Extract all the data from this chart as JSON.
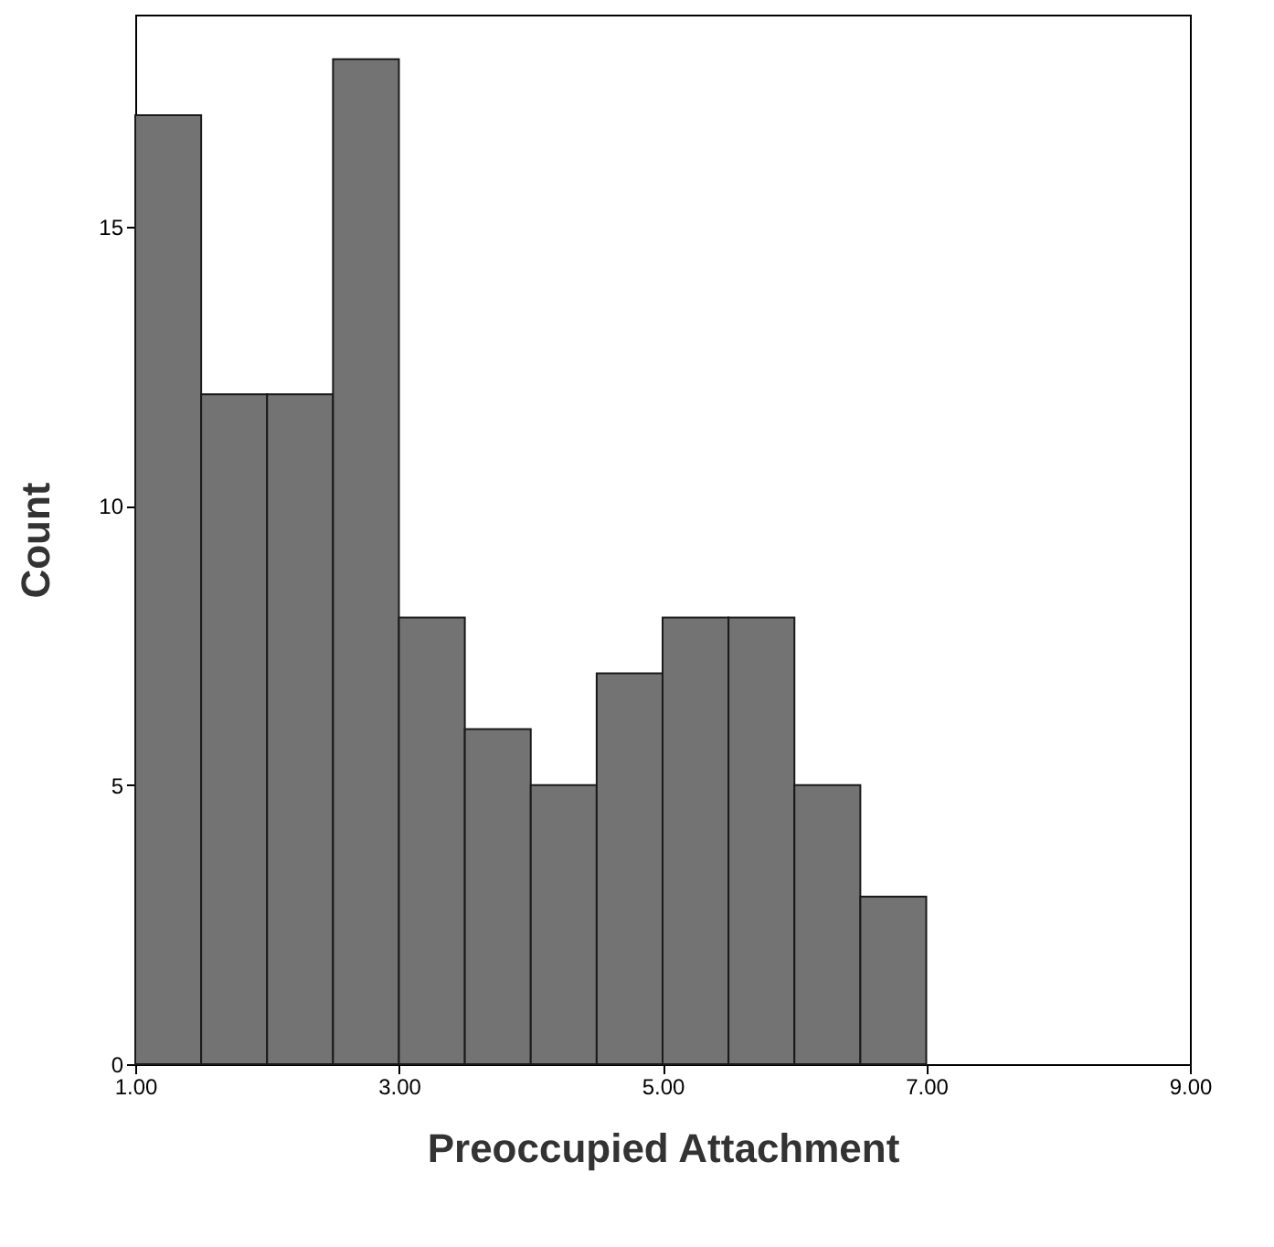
{
  "chart_data": {
    "type": "histogram",
    "xlabel": "Preoccupied Attachment",
    "ylabel": "Count",
    "bins": [
      1.0,
      1.5,
      2.0,
      2.5,
      3.0,
      3.5,
      4.0,
      4.5,
      5.0,
      5.5,
      6.0,
      6.5,
      7.0
    ],
    "values": [
      17,
      12,
      12,
      18,
      8,
      6,
      5,
      7,
      8,
      8,
      5,
      3
    ],
    "color": "#737373",
    "xlim": [
      1.0,
      9.0
    ],
    "xticks": [
      {
        "value": 1,
        "label": "1.00"
      },
      {
        "value": 3,
        "label": "3.00"
      },
      {
        "value": 5,
        "label": "5.00"
      },
      {
        "value": 7,
        "label": "7.00"
      },
      {
        "value": 9,
        "label": "9.00"
      }
    ],
    "ylim": [
      0,
      18.8
    ],
    "yticks": [
      0,
      5,
      10,
      15
    ],
    "grid": false
  }
}
